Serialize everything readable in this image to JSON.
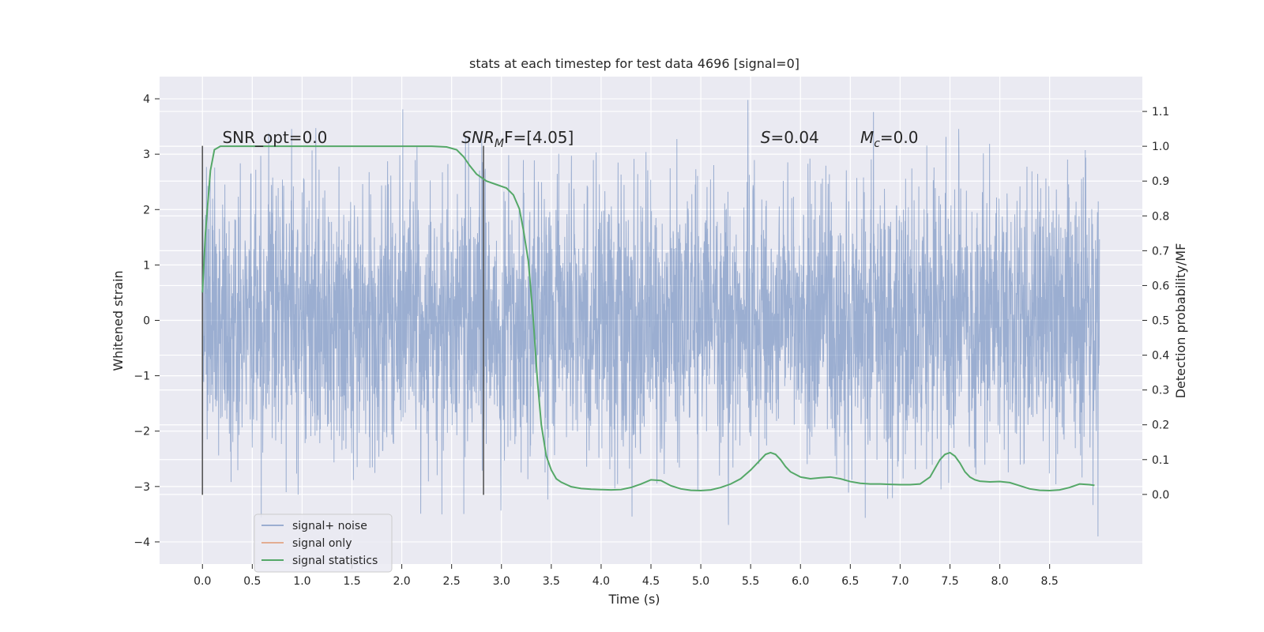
{
  "chart_data": {
    "type": "line",
    "title": "stats at each timestep for test data 4696 [signal=0]",
    "xlabel": "Time (s)",
    "ylabel": "Whitened strain",
    "ylabel_right": "Detection probability/MF",
    "xlim": [
      -0.43,
      9.43
    ],
    "ylim": [
      -4.4,
      4.4
    ],
    "ylim_right": [
      -0.2,
      1.2
    ],
    "x_ticks": [
      "0.0",
      "0.5",
      "1.0",
      "1.5",
      "2.0",
      "2.5",
      "3.0",
      "3.5",
      "4.0",
      "4.5",
      "5.0",
      "5.5",
      "6.0",
      "6.5",
      "7.0",
      "7.5",
      "8.0",
      "8.5"
    ],
    "y_ticks": [
      "−4",
      "−3",
      "−2",
      "−1",
      "0",
      "1",
      "2",
      "3",
      "4"
    ],
    "y_ticks_right": [
      "0.0",
      "0.1",
      "0.2",
      "0.3",
      "0.4",
      "0.5",
      "0.6",
      "0.7",
      "0.8",
      "0.9",
      "1.0",
      "1.1"
    ],
    "grid": true,
    "legend_position": "lower-left",
    "colors": {
      "background": "#eaeaf2",
      "grid": "#ffffff",
      "noise": "#4c72b0",
      "signal_only": "#dd8452",
      "statistics": "#55a868",
      "markers": "#555555",
      "text": "#262626"
    },
    "noise_series": {
      "name": "signal+ noise",
      "x_range": [
        0.0,
        9.0
      ],
      "description_amplitude": "white noise, std about 1.2, peaks near ±4"
    },
    "signal_only_series": {
      "name": "signal only",
      "values_note": "zero"
    },
    "statistics_series": {
      "name": "signal statistics",
      "x": [
        0.0,
        0.03,
        0.08,
        0.12,
        0.18,
        0.25,
        0.4,
        0.8,
        1.2,
        1.6,
        2.0,
        2.3,
        2.45,
        2.55,
        2.62,
        2.68,
        2.75,
        2.85,
        2.95,
        3.05,
        3.12,
        3.18,
        3.22,
        3.27,
        3.32,
        3.36,
        3.4,
        3.45,
        3.5,
        3.55,
        3.6,
        3.7,
        3.8,
        3.9,
        4.0,
        4.1,
        4.2,
        4.3,
        4.4,
        4.5,
        4.6,
        4.7,
        4.8,
        4.9,
        5.0,
        5.1,
        5.2,
        5.3,
        5.4,
        5.5,
        5.6,
        5.65,
        5.7,
        5.75,
        5.8,
        5.85,
        5.9,
        6.0,
        6.1,
        6.2,
        6.3,
        6.4,
        6.5,
        6.6,
        6.7,
        6.8,
        6.9,
        7.0,
        7.1,
        7.2,
        7.3,
        7.35,
        7.4,
        7.45,
        7.5,
        7.55,
        7.6,
        7.65,
        7.7,
        7.75,
        7.8,
        7.9,
        8.0,
        8.1,
        8.2,
        8.3,
        8.4,
        8.5,
        8.6,
        8.7,
        8.8,
        8.9,
        8.95
      ],
      "values": [
        0.58,
        0.75,
        0.93,
        0.99,
        1.0,
        1.0,
        1.0,
        1.0,
        1.0,
        1.0,
        1.0,
        1.0,
        0.998,
        0.99,
        0.97,
        0.945,
        0.92,
        0.9,
        0.89,
        0.88,
        0.86,
        0.82,
        0.76,
        0.67,
        0.5,
        0.33,
        0.2,
        0.11,
        0.07,
        0.045,
        0.035,
        0.022,
        0.017,
        0.015,
        0.014,
        0.013,
        0.014,
        0.02,
        0.03,
        0.042,
        0.04,
        0.025,
        0.016,
        0.012,
        0.011,
        0.013,
        0.02,
        0.03,
        0.045,
        0.07,
        0.1,
        0.115,
        0.12,
        0.115,
        0.1,
        0.08,
        0.065,
        0.05,
        0.045,
        0.048,
        0.05,
        0.045,
        0.037,
        0.032,
        0.03,
        0.03,
        0.029,
        0.028,
        0.028,
        0.03,
        0.05,
        0.075,
        0.1,
        0.115,
        0.12,
        0.11,
        0.09,
        0.065,
        0.05,
        0.042,
        0.038,
        0.036,
        0.037,
        0.034,
        0.025,
        0.016,
        0.012,
        0.011,
        0.013,
        0.02,
        0.03,
        0.028,
        0.026
      ]
    },
    "vertical_markers": [
      {
        "x": 0.0,
        "y_range": [
          -3.15,
          3.15
        ]
      },
      {
        "x": 2.82,
        "y_range": [
          -3.15,
          3.15
        ]
      }
    ],
    "annotations": [
      {
        "x": 0.2,
        "y": 3.2,
        "text": "SNR_opt=0.0"
      },
      {
        "x": 2.6,
        "y": 3.2,
        "base": "SNR",
        "sub": "M",
        "rest": "F=[4.05]"
      },
      {
        "x": 5.6,
        "y": 3.2,
        "base": "S",
        "rest": "=0.04"
      },
      {
        "x": 6.6,
        "y": 3.2,
        "base": "M",
        "sub": "c",
        "rest": "=0.0"
      }
    ]
  }
}
